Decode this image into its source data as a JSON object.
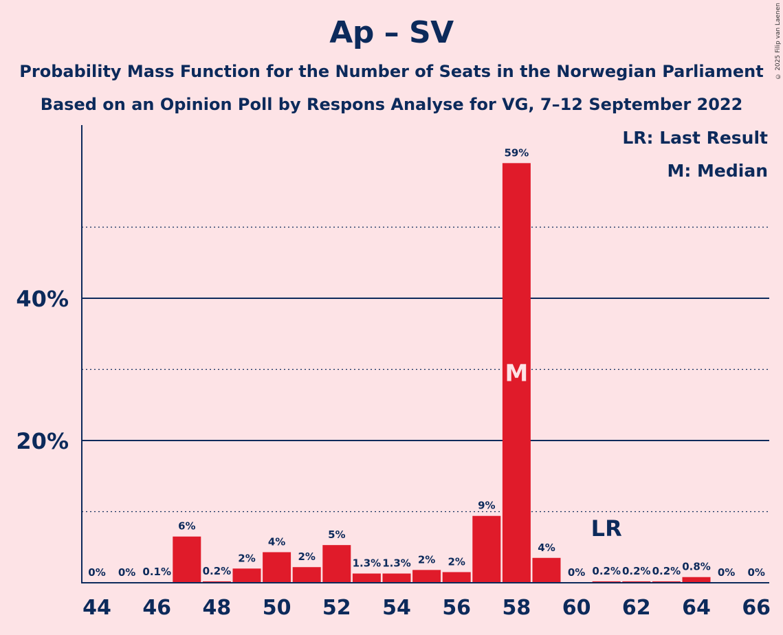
{
  "header": {
    "title": "Ap – SV",
    "subtitle_1": "Probability Mass Function for the Number of Seats in the Norwegian Parliament",
    "subtitle_2": "Based on an Opinion Poll by Respons Analyse for VG, 7–12 September 2022"
  },
  "copyright": "© 2025 Filip van Laenen",
  "legend": {
    "lr": "LR: Last Result",
    "m": "M: Median"
  },
  "colors": {
    "background": "#fde3e6",
    "bar": "#e01b2a",
    "text": "#0c2a5b"
  },
  "chart_data": {
    "type": "bar",
    "x": [
      44,
      45,
      46,
      47,
      48,
      49,
      50,
      51,
      52,
      53,
      54,
      55,
      56,
      57,
      58,
      59,
      60,
      61,
      62,
      63,
      64,
      65,
      66
    ],
    "values": [
      0,
      0,
      0.1,
      6.5,
      0.2,
      2,
      4.3,
      2.2,
      5.3,
      1.3,
      1.3,
      1.8,
      1.5,
      9.4,
      59,
      3.5,
      0,
      0.2,
      0.2,
      0.2,
      0.8,
      0,
      0
    ],
    "labels": [
      "0%",
      "0%",
      "0.1%",
      "6%",
      "0.2%",
      "2%",
      "4%",
      "2%",
      "5%",
      "1.3%",
      "1.3%",
      "2%",
      "2%",
      "9%",
      "59%",
      "4%",
      "0%",
      "0.2%",
      "0.2%",
      "0.2%",
      "0.8%",
      "0%",
      "0%"
    ],
    "xticks": [
      44,
      46,
      48,
      50,
      52,
      54,
      56,
      58,
      60,
      62,
      64,
      66
    ],
    "yticks": [
      {
        "value": 20,
        "label": "20%"
      },
      {
        "value": 40,
        "label": "40%"
      }
    ],
    "ylim": [
      0,
      64
    ],
    "grid_solid": [
      20,
      40
    ],
    "grid_dotted": [
      10,
      30,
      50
    ],
    "median": {
      "x": 58,
      "label": "M"
    },
    "last_result": {
      "x": 61,
      "label": "LR"
    }
  }
}
